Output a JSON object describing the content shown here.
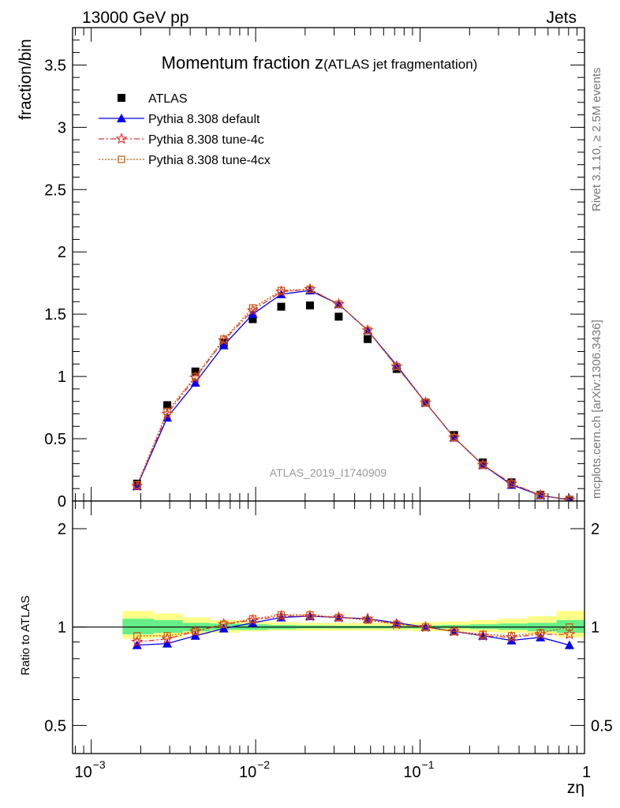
{
  "header": {
    "left": "13000 GeV pp",
    "right": "Jets"
  },
  "side_labels": {
    "rivet": "Rivet 3.1.10, ≥ 2.5M events",
    "mcplots": "mcplots.cern.ch [arXiv:1306.3436]"
  },
  "colors": {
    "atlas": "#000000",
    "default": "#0000ee",
    "tune4c": "#e03030",
    "tune4cx": "#cc5500",
    "band_inner": "#66ee88",
    "band_outer": "#ffff88"
  },
  "chart_data": [
    {
      "type": "line",
      "title": "Momentum fraction z",
      "title_suffix": "(ATLAS jet fragmentation)",
      "ylabel": "fraction/bin",
      "watermark": "ATLAS_2019_I1740909",
      "xscale": "log",
      "xlim": [
        0.00077,
        1.0
      ],
      "ylim": [
        0,
        3.8
      ],
      "yticks": [
        0,
        0.5,
        1,
        1.5,
        2,
        2.5,
        3,
        3.5
      ],
      "ytick_labels": [
        "0",
        "0.5",
        "1",
        "1.5",
        "2",
        "2.5",
        "3",
        "3.5"
      ],
      "legend_position": "top-left",
      "x": [
        0.0019,
        0.0029,
        0.0043,
        0.0064,
        0.0096,
        0.0143,
        0.0214,
        0.032,
        0.048,
        0.072,
        0.108,
        0.161,
        0.241,
        0.36,
        0.54,
        0.81
      ],
      "series": [
        {
          "name": "ATLAS",
          "marker": "square",
          "values": [
            0.14,
            0.77,
            1.04,
            1.27,
            1.46,
            1.56,
            1.57,
            1.48,
            1.3,
            1.06,
            0.79,
            0.53,
            0.31,
            0.15,
            0.05,
            0.01
          ]
        },
        {
          "name": "Pythia 8.308 default",
          "marker": "triangle",
          "values": [
            0.12,
            0.67,
            0.95,
            1.25,
            1.5,
            1.66,
            1.69,
            1.58,
            1.37,
            1.09,
            0.79,
            0.51,
            0.29,
            0.13,
            0.045,
            0.009
          ]
        },
        {
          "name": "Pythia 8.308 tune-4c",
          "marker": "star",
          "values": [
            0.12,
            0.7,
            0.99,
            1.29,
            1.53,
            1.68,
            1.7,
            1.58,
            1.37,
            1.08,
            0.79,
            0.51,
            0.29,
            0.14,
            0.047,
            0.01
          ]
        },
        {
          "name": "Pythia 8.308 tune-4cx",
          "marker": "open-square",
          "values": [
            0.13,
            0.72,
            1.0,
            1.3,
            1.55,
            1.69,
            1.7,
            1.58,
            1.37,
            1.08,
            0.79,
            0.51,
            0.29,
            0.14,
            0.047,
            0.01
          ]
        }
      ]
    },
    {
      "type": "line",
      "title": "",
      "xlabel": "zη",
      "ylabel": "Ratio to ATLAS",
      "xscale": "log",
      "yscale": "log",
      "xlim": [
        0.00077,
        1.0
      ],
      "ylim": [
        0.41,
        2.43
      ],
      "xticks": [
        0.001,
        0.01,
        0.1,
        1
      ],
      "xtick_labels": [
        "10",
        "10",
        "10",
        "1"
      ],
      "xtick_exponents": [
        "−3",
        "−2",
        "−1",
        ""
      ],
      "yticks": [
        0.5,
        1,
        2
      ],
      "ytick_labels": [
        "0.5",
        "1",
        "2"
      ],
      "x": [
        0.0019,
        0.0029,
        0.0043,
        0.0064,
        0.0096,
        0.0143,
        0.0214,
        0.032,
        0.048,
        0.072,
        0.108,
        0.161,
        0.241,
        0.36,
        0.54,
        0.81
      ],
      "band_edges": [
        0.00155,
        0.0024,
        0.0036,
        0.0053,
        0.008,
        0.0119,
        0.0178,
        0.0267,
        0.04,
        0.06,
        0.09,
        0.134,
        0.201,
        0.3,
        0.45,
        0.675,
        1.0
      ],
      "band_inner": [
        [
          0.95,
          1.06
        ],
        [
          0.96,
          1.05
        ],
        [
          0.97,
          1.03
        ],
        [
          0.98,
          1.025
        ],
        [
          0.98,
          1.02
        ],
        [
          0.985,
          1.015
        ],
        [
          0.99,
          1.012
        ],
        [
          0.99,
          1.01
        ],
        [
          0.99,
          1.01
        ],
        [
          0.99,
          1.01
        ],
        [
          0.99,
          1.012
        ],
        [
          0.99,
          1.015
        ],
        [
          0.985,
          1.02
        ],
        [
          0.98,
          1.025
        ],
        [
          0.97,
          1.03
        ],
        [
          0.96,
          1.05
        ]
      ],
      "band_outer": [
        [
          0.92,
          1.12
        ],
        [
          0.93,
          1.1
        ],
        [
          0.95,
          1.07
        ],
        [
          0.96,
          1.05
        ],
        [
          0.97,
          1.04
        ],
        [
          0.975,
          1.035
        ],
        [
          0.975,
          1.03
        ],
        [
          0.975,
          1.03
        ],
        [
          0.975,
          1.03
        ],
        [
          0.975,
          1.03
        ],
        [
          0.97,
          1.035
        ],
        [
          0.97,
          1.04
        ],
        [
          0.965,
          1.05
        ],
        [
          0.96,
          1.06
        ],
        [
          0.95,
          1.08
        ],
        [
          0.93,
          1.12
        ]
      ],
      "series": [
        {
          "name": "Pythia 8.308 default",
          "values": [
            0.88,
            0.89,
            0.94,
            0.99,
            1.03,
            1.07,
            1.08,
            1.07,
            1.06,
            1.03,
            1.0,
            0.97,
            0.94,
            0.91,
            0.93,
            0.88
          ]
        },
        {
          "name": "Pythia 8.308 tune-4c",
          "values": [
            0.9,
            0.92,
            0.97,
            1.02,
            1.05,
            1.08,
            1.08,
            1.07,
            1.06,
            1.02,
            1.0,
            0.97,
            0.94,
            0.93,
            0.95,
            0.95
          ]
        },
        {
          "name": "Pythia 8.308 tune-4cx",
          "values": [
            0.94,
            0.94,
            0.97,
            1.02,
            1.06,
            1.09,
            1.09,
            1.07,
            1.05,
            1.02,
            1.0,
            0.97,
            0.95,
            0.94,
            0.96,
            1.0
          ]
        }
      ]
    }
  ]
}
